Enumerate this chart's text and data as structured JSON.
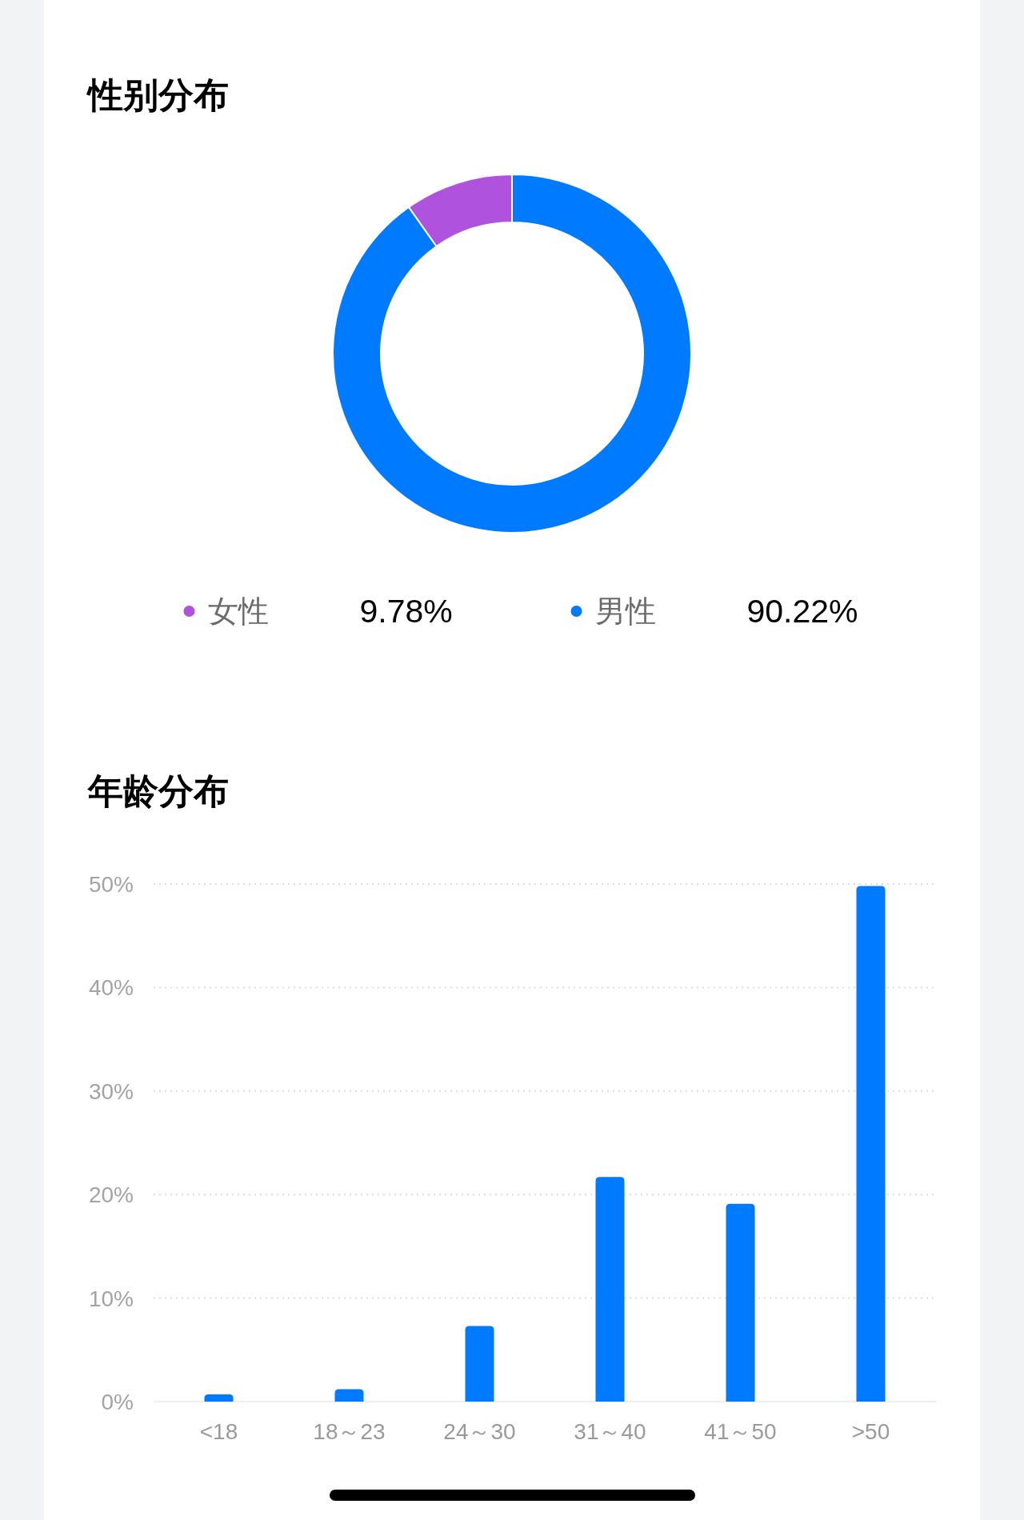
{
  "chart_data": [
    {
      "type": "donut",
      "title": "性别分布",
      "categories": [
        "女性",
        "男性"
      ],
      "values": [
        9.78,
        90.22
      ],
      "colors": [
        "#af52de",
        "#007aff"
      ],
      "value_labels": [
        "9.78%",
        "90.22%"
      ],
      "legend": "bottom"
    },
    {
      "type": "bar",
      "title": "年龄分布",
      "categories": [
        "<18",
        "18～23",
        "24～30",
        "31～40",
        "41～50",
        ">50"
      ],
      "values": [
        0.7,
        1.2,
        7.3,
        21.7,
        19.1,
        49.8
      ],
      "color": "#007aff",
      "ylim": [
        0,
        50
      ],
      "yticks": [
        {
          "value": 0,
          "label": "0%"
        },
        {
          "value": 10,
          "label": "10%"
        },
        {
          "value": 20,
          "label": "20%"
        },
        {
          "value": 30,
          "label": "30%"
        },
        {
          "value": 40,
          "label": "40%"
        },
        {
          "value": 50,
          "label": "50%"
        }
      ],
      "grid": "y"
    }
  ]
}
